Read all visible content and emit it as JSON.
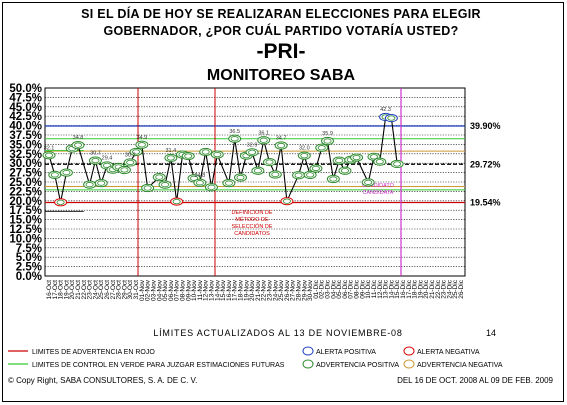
{
  "title_line1": "SI EL DÍA DE HOY SE REALIZARAN ELECCIONES PARA ELEGIR",
  "title_line2": "GOBERNADOR, ¿POR CUÁL PARTIDO VOTARÍA USTED?",
  "party": "-PRI-",
  "subtitle": "MONITOREO SABA",
  "updated_note": "LÍMITES ACTUALIZADOS AL 13 DE NOVIEMBRE-08",
  "page_number": "14",
  "legend": {
    "red_line": "LIMITES DE ADVERTENCIA EN ROJO",
    "green_line": "LIMITES DE CONTROL EN VERDE PARA JUZGAR ESTIMACIONES FUTURAS",
    "positive_alert": "ALERTA POSITIVA",
    "negative_alert": "ALERTA NEGATIVA",
    "positive_warning": "ADVERTENCIA POSITIVA",
    "negative_warning": "ADVERTENCIA NEGATIVA"
  },
  "copyright": "© Copy Right, SABA CONSULTORES, S. A. DE C. V.",
  "date_range": "DEL 16 DE OCT. 2008 AL 09 DE FEB. 2009",
  "colors": {
    "line": "#000000",
    "marker": "#2e8b2e",
    "upper_limit": "#1f3fbf",
    "center_line": "#000000",
    "lower_limit": "#cc0000",
    "control_green": "#33cc33",
    "warning_orange": "#cc9933",
    "red_marker": "#dd0000",
    "pink_vertical": "#cc33cc"
  },
  "chart_data": {
    "type": "line",
    "ylim": [
      0,
      50
    ],
    "yticks": [
      "0.0%",
      "2.5%",
      "5.0%",
      "7.5%",
      "10.0%",
      "12.5%",
      "15.0%",
      "17.5%",
      "20.0%",
      "22.5%",
      "25.0%",
      "27.5%",
      "30.0%",
      "32.5%",
      "35.0%",
      "37.5%",
      "40.0%",
      "42.5%",
      "45.0%",
      "47.5%",
      "50.0%"
    ],
    "ytick_values": [
      0,
      2.5,
      5,
      7.5,
      10,
      12.5,
      15,
      17.5,
      20,
      22.5,
      25,
      27.5,
      30,
      32.5,
      35,
      37.5,
      40,
      42.5,
      45,
      47.5,
      50
    ],
    "grid": "horizontal",
    "x_count": 72,
    "x_labels": [
      "16-Oct",
      "17-Oct",
      "18-Oct",
      "19-Oct",
      "20-Oct",
      "21-Oct",
      "22-Oct",
      "23-Oct",
      "24-Oct",
      "25-Oct",
      "26-Oct",
      "27-Oct",
      "28-Oct",
      "29-Oct",
      "30-Oct",
      "31-Oct",
      "01-Nov",
      "02-Nov",
      "03-Nov",
      "04-Nov",
      "05-Nov",
      "06-Nov",
      "07-Nov",
      "08-Nov",
      "09-Nov",
      "10-Nov",
      "11-Nov",
      "12-Nov",
      "13-Nov",
      "14-Nov",
      "15-Nov",
      "16-Nov",
      "17-Nov",
      "18-Nov",
      "19-Nov",
      "20-Nov",
      "21-Nov",
      "22-Nov",
      "23-Nov",
      "24-Nov",
      "25-Nov",
      "26-Nov",
      "27-Nov",
      "28-Nov",
      "29-Nov",
      "30-Nov",
      "01-Dic",
      "02-Dic",
      "03-Dic",
      "04-Dic",
      "05-Dic",
      "06-Dic",
      "07-Dic",
      "08-Dic",
      "09-Dic",
      "10-Dic",
      "11-Dic",
      "12-Dic",
      "13-Dic",
      "14-Dic",
      "15-Dic",
      "16-Dic",
      "17-Dic",
      "18-Dic",
      "19-Dic",
      "20-Dic",
      "21-Dic",
      "22-Dic",
      "23-Dic",
      "24-Dic",
      "25-Dic",
      "26-Dic"
    ],
    "series": [
      {
        "values": [
          32.1,
          26.9,
          19.6,
          27.5,
          33.9,
          34.8,
          24.3,
          30.7,
          24.7,
          29.4,
          28.3,
          29.0,
          28.2,
          30.2,
          33.0,
          34.9,
          23.4,
          26.3,
          24.3,
          31.4,
          19.8,
          32.3,
          31.9,
          26.0,
          24.8,
          33.0,
          23.6,
          32.3,
          24.7,
          36.5,
          26.2,
          32.0,
          32.9,
          28.0,
          36.1,
          30.3,
          27.0,
          34.7,
          19.9,
          26.8,
          32.0,
          26.9,
          28.6,
          34.1,
          35.9,
          25.8,
          30.7,
          28.0,
          30.9,
          31.5,
          24.9,
          31.7,
          30.4,
          42.3,
          42.0,
          29.8
        ]
      }
    ],
    "data_labels": [
      {
        "index": 0,
        "text": "32.1"
      },
      {
        "index": 5,
        "text": "34.8"
      },
      {
        "index": 7,
        "text": "30.7"
      },
      {
        "index": 9,
        "text": "29.4"
      },
      {
        "index": 13,
        "text": "30.2"
      },
      {
        "index": 15,
        "text": "34.9"
      },
      {
        "index": 19,
        "text": "31.4"
      },
      {
        "index": 24,
        "text": "24.8"
      },
      {
        "index": 29,
        "text": "36.5"
      },
      {
        "index": 32,
        "text": "32.9"
      },
      {
        "index": 34,
        "text": "36.1"
      },
      {
        "index": 37,
        "text": "34.7"
      },
      {
        "index": 40,
        "text": "32.0"
      },
      {
        "index": 44,
        "text": "35.9"
      },
      {
        "index": 53,
        "text": "42.3"
      }
    ],
    "reference_lines": [
      {
        "value": 39.9,
        "label": "39.90%",
        "color": "#1f3fbf"
      },
      {
        "value": 29.72,
        "label": "29.72%",
        "color": "#000000"
      },
      {
        "value": 19.54,
        "label": "19.54%",
        "color": "#cc0000"
      }
    ],
    "control_lines": [
      {
        "value": 36.5,
        "color": "#33cc33"
      },
      {
        "value": 22.9,
        "color": "#33cc33"
      },
      {
        "value": 33.2,
        "color": "#cc9933"
      },
      {
        "value": 23.8,
        "color": "#cc9933"
      }
    ],
    "annotations": [
      {
        "text": "DEFINICION DE MÉTODO DE SELECCIÓN DE CANDIDATOS",
        "color": "#cc0000"
      },
      {
        "text": "CANDIDATO CANDIDATA",
        "color": "#cc33cc"
      }
    ]
  }
}
